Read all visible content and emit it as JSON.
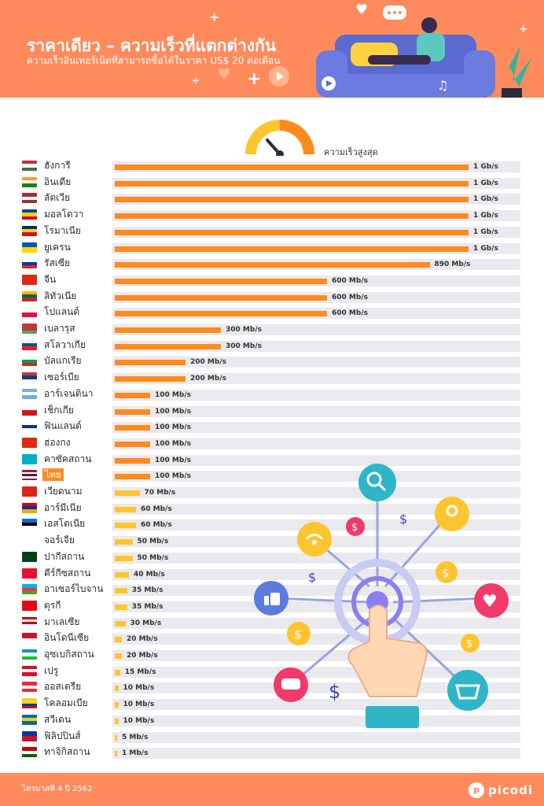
{
  "header": {
    "title": "ราคาเดียว – ความเร็วที่แตกต่างกัน",
    "subtitle": "ความเร็วอินเทอร์เน็ตที่สามารถซื้อได้ในราคา US$ 20 ต่อเดือน"
  },
  "legend": {
    "label": "ความเร็วสูงสุด"
  },
  "colors": {
    "header_bg": "#ff8a5c",
    "bar_high": "#ff8a1e",
    "bar_low": "#ffc52e",
    "track": "#e9e9ee",
    "highlight": "#ff8a1e"
  },
  "chart_data": {
    "type": "bar",
    "orientation": "horizontal",
    "unit": "Mb/s",
    "xlim": [
      0,
      1000
    ],
    "highlight": "ไทย",
    "categories": [
      "ฮังการี",
      "อินเดีย",
      "ลัตเวีย",
      "มอลโดวา",
      "โรมาเนีย",
      "ยูเครน",
      "รัสเซีย",
      "จีน",
      "ลิทัวเนีย",
      "โปแลนด์",
      "เบลารุส",
      "สโลวาเกีย",
      "บัลแกเรีย",
      "เซอร์เบีย",
      "อาร์เจนตินา",
      "เช็กเกีย",
      "ฟินแลนด์",
      "ฮ่องกง",
      "คาซัคสถาน",
      "ไทย",
      "เวียดนาม",
      "อาร์มีเนีย",
      "เอสโตเนีย",
      "จอร์เจีย",
      "ปากีสถาน",
      "คีร์กีซสถาน",
      "อาเซอร์ไบจาน",
      "ตุรกี",
      "มาเลเซีย",
      "อินโดนีเซีย",
      "อุซเบกิสถาน",
      "เปรู",
      "ออสเตรีย",
      "โคลอมเบีย",
      "สวีเดน",
      "ฟิลิปปินส์",
      "ทาจิกิสถาน"
    ],
    "values": [
      1000,
      1000,
      1000,
      1000,
      1000,
      1000,
      890,
      600,
      600,
      600,
      300,
      300,
      200,
      200,
      100,
      100,
      100,
      100,
      100,
      100,
      70,
      60,
      60,
      50,
      50,
      40,
      35,
      35,
      30,
      20,
      20,
      15,
      10,
      10,
      10,
      5,
      1
    ],
    "value_labels": [
      "1 Gb/s",
      "1 Gb/s",
      "1 Gb/s",
      "1 Gb/s",
      "1 Gb/s",
      "1 Gb/s",
      "890 Mb/s",
      "600 Mb/s",
      "600 Mb/s",
      "600 Mb/s",
      "300 Mb/s",
      "300 Mb/s",
      "200 Mb/s",
      "200 Mb/s",
      "100 Mb/s",
      "100 Mb/s",
      "100 Mb/s",
      "100 Mb/s",
      "100 Mb/s",
      "100 Mb/s",
      "70 Mb/s",
      "60 Mb/s",
      "60 Mb/s",
      "50 Mb/s",
      "50 Mb/s",
      "40 Mb/s",
      "35 Mb/s",
      "35 Mb/s",
      "30 Mb/s",
      "20 Mb/s",
      "20 Mb/s",
      "15 Mb/s",
      "10 Mb/s",
      "10 Mb/s",
      "10 Mb/s",
      "5 Mb/s",
      "1 Mb/s"
    ],
    "flags": [
      [
        "#cd2a3e",
        "#ffffff",
        "#436f4d"
      ],
      [
        "#ff9933",
        "#ffffff",
        "#138808"
      ],
      [
        "#9e3039",
        "#ffffff",
        "#9e3039"
      ],
      [
        "#0046ae",
        "#ffd200",
        "#cc092f"
      ],
      [
        "#002b7f",
        "#fcd116",
        "#ce1126"
      ],
      [
        "#0057b7",
        "#ffd700"
      ],
      [
        "#ffffff",
        "#0039a6",
        "#d52b1e"
      ],
      [
        "#de2910"
      ],
      [
        "#fdb913",
        "#006a44",
        "#c1272d"
      ],
      [
        "#ffffff",
        "#dc143c"
      ],
      [
        "#c8313e",
        "#c8313e",
        "#4aa657"
      ],
      [
        "#ffffff",
        "#0b4ea2",
        "#ee1c25"
      ],
      [
        "#ffffff",
        "#00966e",
        "#d62612"
      ],
      [
        "#c6363c",
        "#0c4076",
        "#ffffff"
      ],
      [
        "#74acdf",
        "#ffffff",
        "#74acdf"
      ],
      [
        "#ffffff",
        "#d7141a"
      ],
      [
        "#ffffff",
        "#003580",
        "#ffffff"
      ],
      [
        "#de2910"
      ],
      [
        "#00afca"
      ],
      [
        "#a51931",
        "#ffffff",
        "#2d2a4a",
        "#ffffff",
        "#a51931"
      ],
      [
        "#da251d"
      ],
      [
        "#d90012",
        "#0033a0",
        "#f2a800"
      ],
      [
        "#0072ce",
        "#000000",
        "#ffffff"
      ],
      [
        "#ffffff"
      ],
      [
        "#01411c"
      ],
      [
        "#e8112d"
      ],
      [
        "#00b5e2",
        "#ef3340",
        "#509e2f"
      ],
      [
        "#e30a17"
      ],
      [
        "#cc0001",
        "#ffffff",
        "#cc0001",
        "#ffffff"
      ],
      [
        "#ce1126",
        "#ffffff"
      ],
      [
        "#0099b5",
        "#ffffff",
        "#1eb53a"
      ],
      [
        "#d91023",
        "#ffffff",
        "#d91023"
      ],
      [
        "#ed2939",
        "#ffffff",
        "#ed2939"
      ],
      [
        "#fcd116",
        "#fcd116",
        "#003893",
        "#ce1126"
      ],
      [
        "#006aa7",
        "#fecc00",
        "#006aa7"
      ],
      [
        "#0038a8",
        "#ce1126"
      ],
      [
        "#cc0000",
        "#ffffff",
        "#006600"
      ]
    ]
  },
  "footer": {
    "note": "ไตรมาสที่ 4 ปี 2562",
    "brand": "picodi"
  }
}
